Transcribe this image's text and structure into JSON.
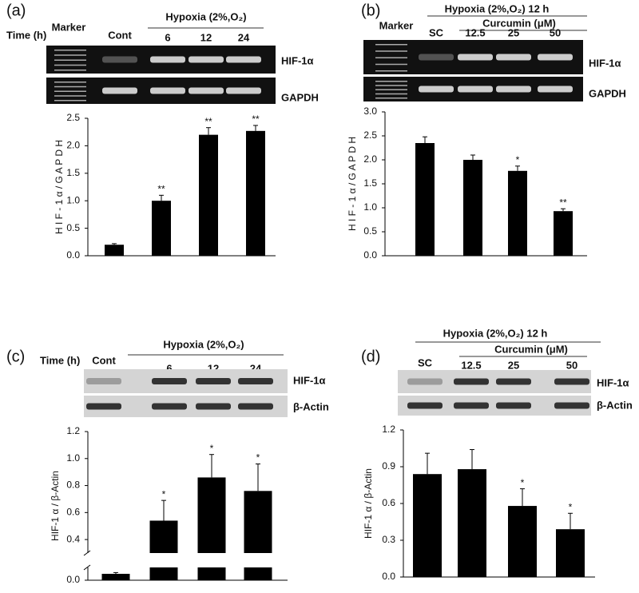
{
  "chart_data": [
    {
      "type": "bar",
      "label": "(a)",
      "time_label": "Time (h)",
      "marker": "Marker",
      "header": "Hypoxia (2%,O₂)",
      "categories": [
        "Cont",
        "6",
        "12",
        "24"
      ],
      "bands": [
        "HIF-1α",
        "GAPDH"
      ],
      "gel_style": "dark",
      "ylabel": "H I F - 1 α / G A P D H",
      "values": [
        0.2,
        1.0,
        2.2,
        2.27
      ],
      "errors": [
        0.02,
        0.1,
        0.13,
        0.1
      ],
      "annotations": [
        null,
        "**",
        "**",
        "**"
      ],
      "color": "#000000",
      "ylim": [
        0,
        2.5
      ],
      "yticks": [
        {
          "value": 0,
          "label": "0.0"
        },
        0.5,
        {
          "value": 1,
          "label": "1.0"
        },
        1.5,
        {
          "value": 2,
          "label": "2.0"
        },
        2.5
      ]
    },
    {
      "type": "bar",
      "label": "(b)",
      "marker": "Marker",
      "header": "Hypoxia (2%,O₂)  12 h",
      "subheader": "Curcumin (μM)",
      "categories": [
        "SC",
        "12.5",
        "25",
        "50"
      ],
      "bands": [
        "HIF-1α",
        "GAPDH"
      ],
      "gel_style": "dark",
      "ylabel": "H I F - 1 α / G A P D H",
      "values": [
        2.35,
        2.0,
        1.77,
        0.93
      ],
      "errors": [
        0.13,
        0.1,
        0.1,
        0.05
      ],
      "annotations": [
        null,
        null,
        "*",
        "**"
      ],
      "color": "#000000",
      "ylim": [
        0,
        3
      ],
      "yticks": [
        {
          "value": 0,
          "label": "0.0"
        },
        0.5,
        {
          "value": 1,
          "label": "1.0"
        },
        1.5,
        {
          "value": 2,
          "label": "2.0"
        },
        2.5,
        {
          "value": 3,
          "label": "3.0"
        }
      ]
    },
    {
      "type": "bar",
      "label": "(c)",
      "time_label": "Time (h)",
      "header": "Hypoxia (2%,O₂)",
      "categories": [
        "Cont",
        "6",
        "12",
        "24"
      ],
      "bands": [
        "HIF-1α",
        "β-Actin"
      ],
      "gel_style": "light",
      "ylabel": "HIF-1 α / β-Actin",
      "values": [
        0.05,
        0.54,
        0.86,
        0.76
      ],
      "errors": [
        0.01,
        0.15,
        0.17,
        0.2
      ],
      "annotations": [
        null,
        "*",
        "*",
        "*"
      ],
      "color": "#000000",
      "ylim": [
        0,
        1.2
      ],
      "axis_break": [
        0.1,
        0.3
      ],
      "yticks": [
        {
          "value": 0,
          "label": "0.0"
        },
        0.4,
        0.6,
        0.8,
        {
          "value": 1,
          "label": "1.0"
        },
        1.2
      ]
    },
    {
      "type": "bar",
      "label": "(d)",
      "header": "Hypoxia (2%,O₂)  12 h",
      "subheader": "Curcumin (μM)",
      "categories": [
        "SC",
        "12.5",
        "25",
        "50"
      ],
      "bands": [
        "HIF-1α",
        "β-Actin"
      ],
      "gel_style": "light",
      "ylabel": "HIF-1 α / β-Actin",
      "values": [
        0.84,
        0.88,
        0.58,
        0.39
      ],
      "errors": [
        0.17,
        0.16,
        0.14,
        0.13
      ],
      "annotations": [
        null,
        null,
        "*",
        "*"
      ],
      "color": "#000000",
      "ylim": [
        0,
        1.2
      ],
      "yticks": [
        {
          "value": 0,
          "label": "0.0"
        },
        0.3,
        0.6,
        0.9,
        1.2
      ]
    }
  ]
}
